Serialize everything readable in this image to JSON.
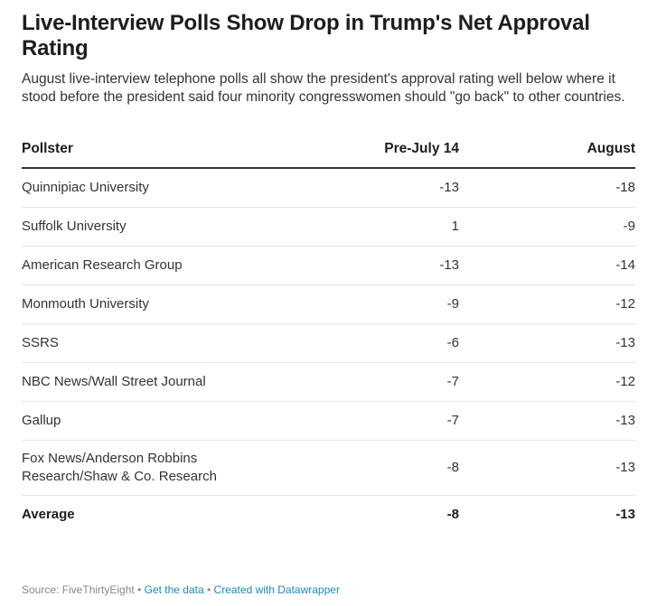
{
  "title": "Live-Interview Polls Show Drop in Trump's Net Approval Rating",
  "subtitle": "August live-interview telephone polls all show the president's approval rating well below where it stood before the president said four minority congresswomen should \"go back\" to other countries.",
  "chart_data": {
    "type": "table",
    "columns": [
      "Pollster",
      "Pre-July 14",
      "August"
    ],
    "rows": [
      {
        "pollster": "Quinnipiac University",
        "pre": "-13",
        "aug": "-18"
      },
      {
        "pollster": "Suffolk University",
        "pre": "1",
        "aug": "-9"
      },
      {
        "pollster": "American Research Group",
        "pre": "-13",
        "aug": "-14"
      },
      {
        "pollster": "Monmouth University",
        "pre": "-9",
        "aug": "-12"
      },
      {
        "pollster": "SSRS",
        "pre": "-6",
        "aug": "-13"
      },
      {
        "pollster": "NBC News/Wall Street Journal",
        "pre": "-7",
        "aug": "-12"
      },
      {
        "pollster": "Gallup",
        "pre": "-7",
        "aug": "-13"
      },
      {
        "pollster": "Fox News/Anderson Robbins Research/Shaw & Co. Research",
        "pre": "-8",
        "aug": "-13"
      }
    ],
    "average": {
      "label": "Average",
      "pre": "-8",
      "aug": "-13"
    }
  },
  "footer": {
    "source": "Source: FiveThirtyEight",
    "get_data": "Get the data",
    "created_with": "Created with Datawrapper",
    "separator": "•"
  },
  "colors": {
    "text": "#333333",
    "link": "#1a8ab8",
    "rule": "#333333",
    "row_border": "#e6e6e6"
  }
}
